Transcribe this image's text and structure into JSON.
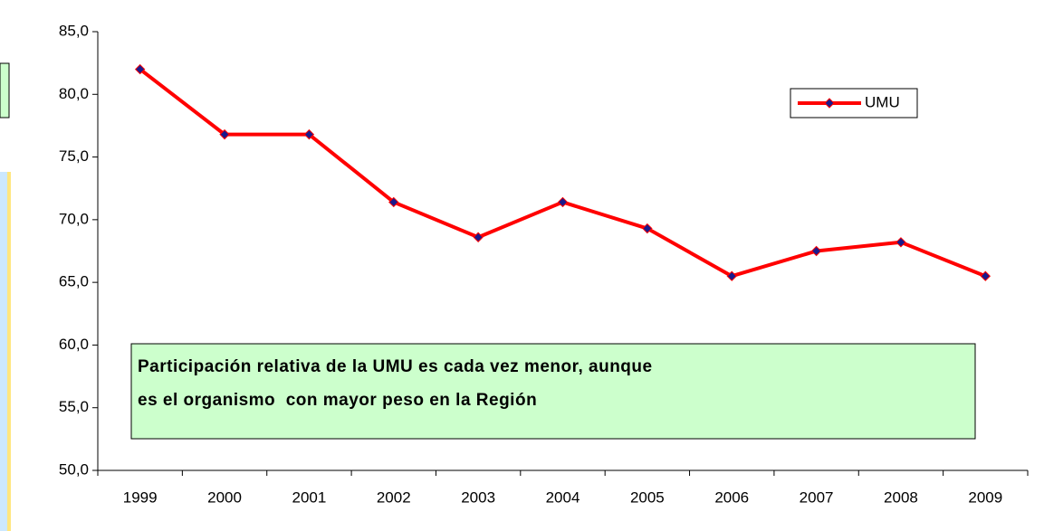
{
  "chart_data": {
    "type": "line",
    "categories": [
      "1999",
      "2000",
      "2001",
      "2002",
      "2003",
      "2004",
      "2005",
      "2006",
      "2007",
      "2008",
      "2009"
    ],
    "series": [
      {
        "name": "UMU",
        "color": "#ff0000",
        "marker_color": "#1a1a8c",
        "values": [
          82.0,
          76.8,
          76.8,
          71.4,
          68.6,
          71.4,
          69.3,
          65.5,
          67.5,
          68.2,
          65.5
        ]
      }
    ],
    "ylim": [
      50,
      85
    ],
    "yticks": [
      {
        "value": 50,
        "label": "50,0"
      },
      {
        "value": 55,
        "label": "55,0"
      },
      {
        "value": 60,
        "label": "60,0"
      },
      {
        "value": 65,
        "label": "65,0"
      },
      {
        "value": 70,
        "label": "70,0"
      },
      {
        "value": 75,
        "label": "75,0"
      },
      {
        "value": 80,
        "label": "80,0"
      },
      {
        "value": 85,
        "label": "85,0"
      }
    ],
    "legend": "top-right",
    "annotation": [
      "Participación relativa de la UMU es cada vez menor, aunque",
      "es el organismo  con mayor peso en la Región"
    ]
  }
}
